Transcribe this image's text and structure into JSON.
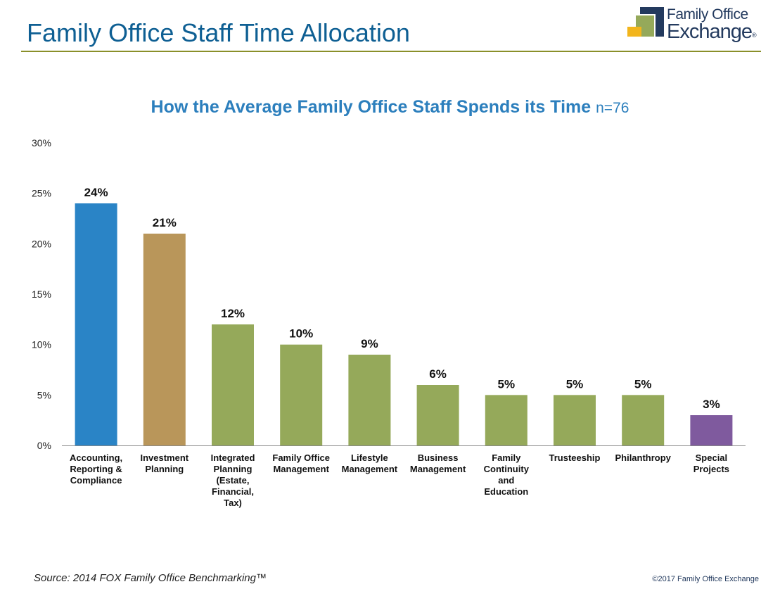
{
  "header": {
    "title": "Family Office Staff Time Allocation",
    "logo_line1": "Family Office",
    "logo_line2": "Exchange",
    "logo_mark": "®"
  },
  "footer": {
    "source": "Source: 2014 FOX Family Office Benchmarking™",
    "copyright": "©2017 Family Office Exchange"
  },
  "colors": {
    "blue": "#2a84c6",
    "tan": "#b9965a",
    "green": "#95a95a",
    "purple": "#7f5a9e",
    "title_blue": "#0e5f93"
  },
  "chart_data": {
    "type": "bar",
    "title": "How the Average Family Office Staff Spends its Time",
    "subtitle": "n=76",
    "xlabel": "",
    "ylabel": "",
    "ylim": [
      0,
      30
    ],
    "yticks": [
      "0%",
      "5%",
      "10%",
      "15%",
      "20%",
      "25%",
      "30%"
    ],
    "grid": false,
    "categories": [
      [
        "Accounting,",
        "Reporting &",
        "Compliance"
      ],
      [
        "Investment",
        "Planning"
      ],
      [
        "Integrated",
        "Planning",
        "(Estate,",
        "Financial,",
        "Tax)"
      ],
      [
        "Family Office",
        "Management"
      ],
      [
        "Lifestyle",
        "Management"
      ],
      [
        "Business",
        "Management"
      ],
      [
        "Family",
        "Continuity",
        "and",
        "Education"
      ],
      [
        "Trusteeship"
      ],
      [
        "Philanthropy"
      ],
      [
        "Special",
        "Projects"
      ]
    ],
    "values": [
      24,
      21,
      12,
      10,
      9,
      6,
      5,
      5,
      5,
      3
    ],
    "data_labels": [
      "24%",
      "21%",
      "12%",
      "10%",
      "9%",
      "6%",
      "5%",
      "5%",
      "5%",
      "3%"
    ],
    "bar_colors": [
      "#2a84c6",
      "#b9965a",
      "#95a95a",
      "#95a95a",
      "#95a95a",
      "#95a95a",
      "#95a95a",
      "#95a95a",
      "#95a95a",
      "#7f5a9e"
    ]
  }
}
